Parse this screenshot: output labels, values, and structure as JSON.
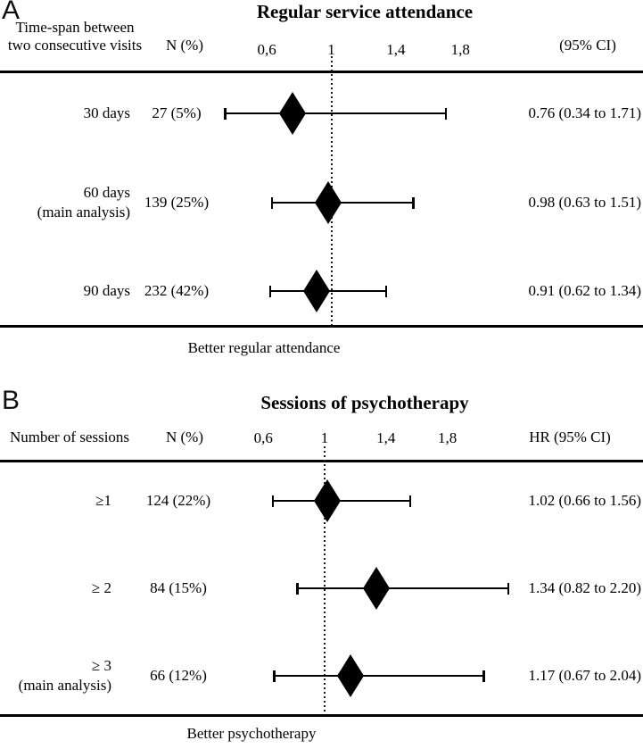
{
  "figure": {
    "background": "#ffffff",
    "ink": "#000000"
  },
  "chart_data": [
    {
      "type": "forest",
      "panel_letter": "A",
      "title": "Regular service attendance",
      "col_header_lines": [
        "Time-span between",
        "two consecutive visits"
      ],
      "n_header": "N (%)",
      "effect_header": "(95% CI)",
      "axis": {
        "ticks": [
          0.6,
          1,
          1.4,
          1.8
        ],
        "tick_labels": [
          "0,6",
          "1",
          "1,4",
          "1,8"
        ],
        "reference_line": 1,
        "xlim": [
          0.3,
          2.3
        ],
        "scale": "linear"
      },
      "rows": [
        {
          "label_lines": [
            "30 days"
          ],
          "n": "27 (5%)",
          "est": 0.76,
          "lo": 0.34,
          "hi": 1.71,
          "ci_text": "0.76 (0.34 to 1.71)"
        },
        {
          "label_lines": [
            "60 days",
            "(main analysis)"
          ],
          "n": "139 (25%)",
          "est": 0.98,
          "lo": 0.63,
          "hi": 1.51,
          "ci_text": "0.98 (0.63 to 1.51)"
        },
        {
          "label_lines": [
            "90 days"
          ],
          "n": "232 (42%)",
          "est": 0.91,
          "lo": 0.62,
          "hi": 1.34,
          "ci_text": "0.91 (0.62 to 1.34)"
        }
      ],
      "footer_label": "Better regular attendance"
    },
    {
      "type": "forest",
      "panel_letter": "B",
      "title": "Sessions of psychotherapy",
      "col_header_lines": [
        "Number of sessions"
      ],
      "n_header": "N (%)",
      "effect_header": "HR (95% CI)",
      "axis": {
        "ticks": [
          0.6,
          1,
          1.4,
          1.8
        ],
        "tick_labels": [
          "0,6",
          "1",
          "1,4",
          "1,8"
        ],
        "reference_line": 1,
        "xlim": [
          0.3,
          2.3
        ],
        "scale": "linear"
      },
      "rows": [
        {
          "label_lines": [
            "≥1"
          ],
          "n": "124 (22%)",
          "est": 1.02,
          "lo": 0.66,
          "hi": 1.56,
          "ci_text": "1.02 (0.66 to 1.56)"
        },
        {
          "label_lines": [
            "≥ 2"
          ],
          "n": "84 (15%)",
          "est": 1.34,
          "lo": 0.82,
          "hi": 2.2,
          "ci_text": "1.34 (0.82 to 2.20)"
        },
        {
          "label_lines": [
            "≥ 3",
            "(main analysis)"
          ],
          "n": "66 (12%)",
          "est": 1.17,
          "lo": 0.67,
          "hi": 2.04,
          "ci_text": "1.17 (0.67 to 2.04)"
        }
      ],
      "footer_label": "Better psychotherapy"
    }
  ]
}
